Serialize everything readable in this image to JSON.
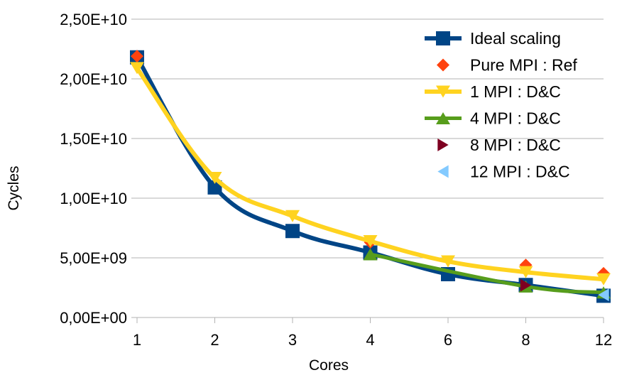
{
  "chart_data": {
    "type": "line",
    "title": "",
    "xlabel": "Cores",
    "ylabel": "Cycles",
    "categories": [
      "1",
      "2",
      "3",
      "4",
      "6",
      "8",
      "12"
    ],
    "ylim": [
      0,
      25000000000
    ],
    "yticks": [
      0,
      5000000000,
      10000000000,
      15000000000,
      20000000000,
      25000000000
    ],
    "ytick_labels": [
      "0,00E+00",
      "5,00E+09",
      "1,00E+10",
      "1,50E+10",
      "2,00E+10",
      "2,50E+10"
    ],
    "grid": true,
    "legend_position": "top-right",
    "series": [
      {
        "name": "Ideal scaling",
        "values": [
          21800000000,
          10900000000,
          7250000000,
          5450000000,
          3630000000,
          2720000000,
          1820000000
        ],
        "color": "#004586",
        "marker": "square",
        "line": true
      },
      {
        "name": "Pure MPI : Ref",
        "values": [
          21900000000,
          null,
          null,
          6300000000,
          null,
          4400000000,
          3700000000
        ],
        "color": "#ff420e",
        "marker": "diamond",
        "line": false
      },
      {
        "name": "1 MPI : D&C",
        "values": [
          20900000000,
          11700000000,
          8500000000,
          6400000000,
          4700000000,
          3800000000,
          3200000000
        ],
        "color": "#ffd320",
        "marker": "triangle-down",
        "line": true
      },
      {
        "name": "4 MPI : D&C",
        "values": [
          null,
          null,
          null,
          5300000000,
          null,
          2600000000,
          2100000000
        ],
        "color": "#579d1c",
        "marker": "triangle-up",
        "line": true
      },
      {
        "name": "8 MPI : D&C",
        "values": [
          null,
          null,
          null,
          null,
          null,
          2700000000,
          null
        ],
        "color": "#7e0021",
        "marker": "triangle-right",
        "line": false
      },
      {
        "name": "12 MPI : D&C",
        "values": [
          null,
          null,
          null,
          null,
          null,
          null,
          1900000000
        ],
        "color": "#83caff",
        "marker": "triangle-left",
        "line": false
      }
    ]
  }
}
